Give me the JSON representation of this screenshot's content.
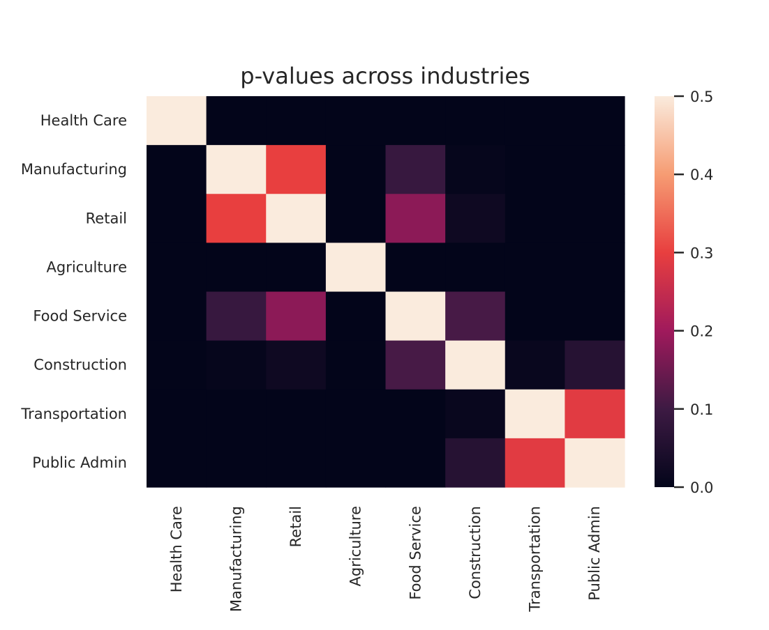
{
  "chart_data": {
    "type": "heatmap",
    "title": "p-values across industries",
    "row_labels": [
      "Health Care",
      "Manufacturing",
      "Retail",
      "Agriculture",
      "Food Service",
      "Construction",
      "Transportation",
      "Public Admin"
    ],
    "col_labels": [
      "Health Care",
      "Manufacturing",
      "Retail",
      "Agriculture",
      "Food Service",
      "Construction",
      "Transportation",
      "Public Admin"
    ],
    "values": [
      [
        0.5,
        0.0,
        0.0,
        0.0,
        0.0,
        0.0,
        0.0,
        0.0
      ],
      [
        0.0,
        0.5,
        0.3,
        0.0,
        0.09,
        0.005,
        0.0,
        0.0
      ],
      [
        0.0,
        0.3,
        0.5,
        0.0,
        0.18,
        0.02,
        0.0,
        0.0
      ],
      [
        0.0,
        0.0,
        0.0,
        0.5,
        0.0,
        0.0,
        0.0,
        0.0
      ],
      [
        0.0,
        0.09,
        0.18,
        0.0,
        0.5,
        0.11,
        0.0,
        0.0
      ],
      [
        0.0,
        0.005,
        0.02,
        0.0,
        0.11,
        0.5,
        0.01,
        0.06
      ],
      [
        0.0,
        0.0,
        0.0,
        0.0,
        0.0,
        0.01,
        0.5,
        0.29
      ],
      [
        0.0,
        0.0,
        0.0,
        0.0,
        0.0,
        0.06,
        0.29,
        0.5
      ]
    ],
    "colorbar": {
      "vmin": 0.0,
      "vmax": 0.5,
      "ticks": [
        0.0,
        0.1,
        0.2,
        0.3,
        0.4,
        0.5
      ],
      "tick_labels": [
        "0.0",
        "0.1",
        "0.2",
        "0.3",
        "0.4",
        "0.5"
      ],
      "colormap": "rocket",
      "colormap_stops": [
        "#03051a",
        "#3d1a43",
        "#a01a5c",
        "#e83f3f",
        "#f69c73",
        "#faebdd"
      ]
    },
    "grid": false
  }
}
